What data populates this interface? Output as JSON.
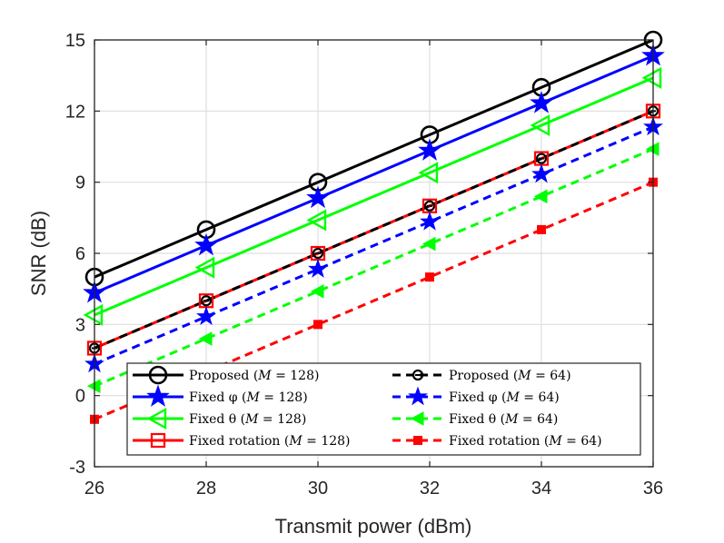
{
  "chart_data": {
    "type": "line",
    "xlabel": "Transmit power (dBm)",
    "ylabel": "SNR (dB)",
    "xlim": [
      26,
      36
    ],
    "ylim": [
      -3,
      15
    ],
    "x": [
      26,
      28,
      30,
      32,
      34,
      36
    ],
    "xticks": [
      "26",
      "28",
      "30",
      "32",
      "34",
      "36"
    ],
    "yticks": [
      "-3",
      "0",
      "3",
      "6",
      "9",
      "12",
      "15"
    ],
    "grid": true,
    "legend_position": "bottom-right",
    "series": [
      {
        "name": "Proposed (M = 128)",
        "label_main": "Proposed (",
        "label_sym": "M",
        "label_rest": " = 128)",
        "color": "#000000",
        "marker": "circle",
        "linestyle": "solid",
        "values": [
          5,
          7,
          9,
          11,
          13,
          15
        ]
      },
      {
        "name": "Fixed φ (M = 128)",
        "label_main": "Fixed φ (",
        "label_sym": "M",
        "label_rest": " = 128)",
        "color": "#0000ff",
        "marker": "star",
        "linestyle": "solid",
        "values": [
          4.33,
          6.33,
          8.33,
          10.33,
          12.33,
          14.33
        ]
      },
      {
        "name": "Fixed θ (M = 128)",
        "label_main": "Fixed θ (",
        "label_sym": "M",
        "label_rest": " = 128)",
        "color": "#00ff00",
        "marker": "triangle-left",
        "linestyle": "solid",
        "values": [
          3.4,
          5.4,
          7.4,
          9.4,
          11.4,
          13.4
        ]
      },
      {
        "name": "Fixed rotation (M = 128)",
        "label_main": "Fixed rotation (",
        "label_sym": "M",
        "label_rest": " = 128)",
        "color": "#ff0000",
        "marker": "square",
        "linestyle": "solid",
        "values": [
          2,
          4,
          6,
          8,
          10,
          12
        ]
      },
      {
        "name": "Proposed (M = 64)",
        "label_main": "Proposed (",
        "label_sym": "M",
        "label_rest": " = 64)",
        "color": "#000000",
        "marker": "circle-small",
        "linestyle": "dashed",
        "values": [
          2,
          4,
          6,
          8,
          10,
          12
        ]
      },
      {
        "name": "Fixed φ (M = 64)",
        "label_main": "Fixed φ (",
        "label_sym": "M",
        "label_rest": " = 64)",
        "color": "#0000ff",
        "marker": "star-small",
        "linestyle": "dashed",
        "values": [
          1.33,
          3.33,
          5.33,
          7.33,
          9.33,
          11.33
        ]
      },
      {
        "name": "Fixed θ (M = 64)",
        "label_main": "Fixed θ (",
        "label_sym": "M",
        "label_rest": " = 64)",
        "color": "#00ff00",
        "marker": "triangle-left-filled",
        "linestyle": "dashed",
        "values": [
          0.4,
          2.4,
          4.4,
          6.4,
          8.4,
          10.4
        ]
      },
      {
        "name": "Fixed rotation (M = 64)",
        "label_main": "Fixed rotation (",
        "label_sym": "M",
        "label_rest": " = 64)",
        "color": "#ff0000",
        "marker": "square-filled",
        "linestyle": "dashed",
        "values": [
          -1,
          1,
          3,
          5,
          7,
          9
        ]
      }
    ]
  }
}
